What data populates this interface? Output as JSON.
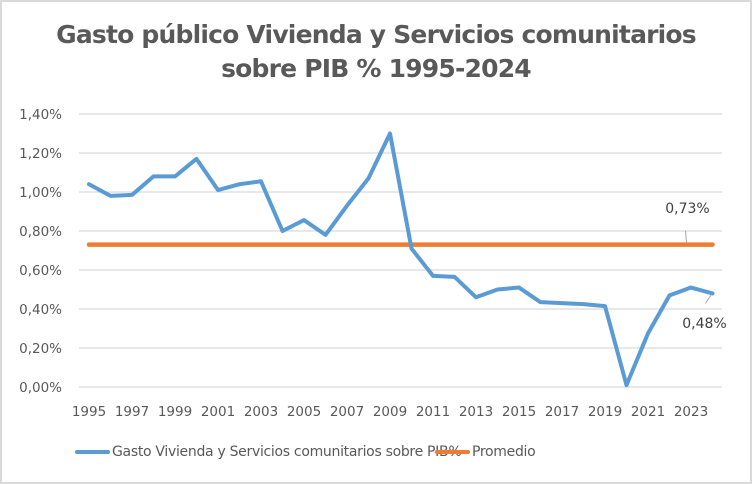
{
  "chart_data": {
    "type": "line",
    "title_lines": [
      "Gasto público Vivienda y Servicios comunitarios",
      "sobre PIB % 1995-2024"
    ],
    "title": "Gasto público Vivienda y Servicios comunitarios sobre PIB % 1995-2024",
    "xlabel": "",
    "ylabel": "",
    "x": [
      1995,
      1996,
      1997,
      1998,
      1999,
      2000,
      2001,
      2002,
      2003,
      2004,
      2005,
      2006,
      2007,
      2008,
      2009,
      2010,
      2011,
      2012,
      2013,
      2014,
      2015,
      2016,
      2017,
      2018,
      2019,
      2020,
      2021,
      2022,
      2023,
      2024
    ],
    "x_tick_labels": [
      "1995",
      "1997",
      "1999",
      "2001",
      "2003",
      "2005",
      "2007",
      "2009",
      "2011",
      "2013",
      "2015",
      "2017",
      "2019",
      "2021",
      "2023"
    ],
    "y_tick_labels": [
      "0,00%",
      "0,20%",
      "0,40%",
      "0,60%",
      "0,80%",
      "1,00%",
      "1,20%",
      "1,40%"
    ],
    "y_ticks": [
      0,
      0.2,
      0.4,
      0.6,
      0.8,
      1.0,
      1.2,
      1.4
    ],
    "ylim": [
      0,
      1.4
    ],
    "grid": true,
    "legend_position": "bottom",
    "series": [
      {
        "name": "Gasto Vivienda y Servicios comunitarios sobre PIB%",
        "color": "#5b9bd5",
        "values": [
          1.04,
          0.98,
          0.985,
          1.08,
          1.08,
          1.17,
          1.01,
          1.04,
          1.055,
          0.8,
          0.856,
          0.78,
          0.93,
          1.07,
          1.3,
          0.71,
          0.57,
          0.565,
          0.46,
          0.5,
          0.51,
          0.435,
          0.43,
          0.425,
          0.415,
          0.01,
          0.275,
          0.47,
          0.51,
          0.48
        ],
        "end_label": "0,48%"
      },
      {
        "name": "Promedio",
        "color": "#ed7d31",
        "values": [
          0.73,
          0.73,
          0.73,
          0.73,
          0.73,
          0.73,
          0.73,
          0.73,
          0.73,
          0.73,
          0.73,
          0.73,
          0.73,
          0.73,
          0.73,
          0.73,
          0.73,
          0.73,
          0.73,
          0.73,
          0.73,
          0.73,
          0.73,
          0.73,
          0.73,
          0.73,
          0.73,
          0.73,
          0.73,
          0.73
        ],
        "end_label": "0,73%"
      }
    ]
  }
}
